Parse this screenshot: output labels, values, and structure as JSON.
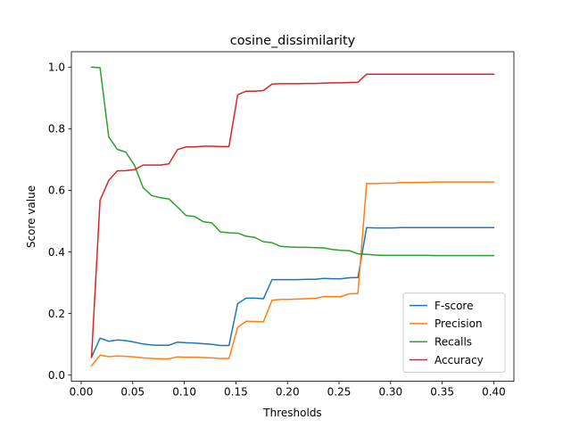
{
  "chart_data": {
    "type": "line",
    "title": "cosine_dissimilarity",
    "xlabel": "Thresholds",
    "ylabel": "Score value",
    "xlim": [
      -0.0095,
      0.4195
    ],
    "ylim": [
      -0.02,
      1.05
    ],
    "xticks": [
      0.0,
      0.05,
      0.1,
      0.15,
      0.2,
      0.25,
      0.3,
      0.35,
      0.4
    ],
    "xtick_labels": [
      "0.00",
      "0.05",
      "0.10",
      "0.15",
      "0.20",
      "0.25",
      "0.30",
      "0.35",
      "0.40"
    ],
    "yticks": [
      0.0,
      0.2,
      0.4,
      0.6,
      0.8,
      1.0
    ],
    "ytick_labels": [
      "0.0",
      "0.2",
      "0.4",
      "0.6",
      "0.8",
      "1.0"
    ],
    "grid": false,
    "legend_position": "lower right",
    "x": [
      0.01,
      0.0183,
      0.0267,
      0.035,
      0.0433,
      0.0517,
      0.06,
      0.0683,
      0.0767,
      0.085,
      0.0933,
      0.1017,
      0.11,
      0.1183,
      0.1267,
      0.135,
      0.1433,
      0.1517,
      0.16,
      0.1683,
      0.1767,
      0.185,
      0.1933,
      0.2017,
      0.21,
      0.2183,
      0.2267,
      0.235,
      0.2433,
      0.2517,
      0.26,
      0.2683,
      0.2767,
      0.285,
      0.2933,
      0.3017,
      0.31,
      0.3183,
      0.3267,
      0.335,
      0.3433,
      0.3517,
      0.36,
      0.3683,
      0.3767,
      0.385,
      0.3933,
      0.4
    ],
    "series": [
      {
        "name": "F-score",
        "color": "#1f77b4",
        "values": [
          0.058,
          0.12,
          0.11,
          0.114,
          0.112,
          0.107,
          0.101,
          0.098,
          0.097,
          0.097,
          0.107,
          0.105,
          0.104,
          0.102,
          0.1,
          0.096,
          0.096,
          0.232,
          0.25,
          0.25,
          0.248,
          0.31,
          0.31,
          0.31,
          0.31,
          0.311,
          0.311,
          0.314,
          0.313,
          0.313,
          0.316,
          0.317,
          0.479,
          0.478,
          0.478,
          0.478,
          0.479,
          0.479,
          0.479,
          0.479,
          0.479,
          0.479,
          0.479,
          0.479,
          0.479,
          0.479,
          0.479,
          0.479
        ]
      },
      {
        "name": "Precision",
        "color": "#ff7f0e",
        "values": [
          0.03,
          0.065,
          0.06,
          0.062,
          0.061,
          0.059,
          0.056,
          0.054,
          0.053,
          0.053,
          0.059,
          0.058,
          0.058,
          0.057,
          0.056,
          0.054,
          0.054,
          0.155,
          0.175,
          0.174,
          0.173,
          0.243,
          0.246,
          0.246,
          0.247,
          0.248,
          0.249,
          0.255,
          0.255,
          0.255,
          0.264,
          0.265,
          0.622,
          0.622,
          0.623,
          0.623,
          0.625,
          0.625,
          0.626,
          0.626,
          0.627,
          0.627,
          0.627,
          0.627,
          0.627,
          0.627,
          0.627,
          0.627
        ]
      },
      {
        "name": "Recalls",
        "color": "#2ca02c",
        "values": [
          1.0,
          0.998,
          0.774,
          0.733,
          0.724,
          0.681,
          0.609,
          0.583,
          0.576,
          0.572,
          0.546,
          0.518,
          0.515,
          0.498,
          0.494,
          0.465,
          0.462,
          0.461,
          0.451,
          0.447,
          0.433,
          0.43,
          0.418,
          0.416,
          0.415,
          0.415,
          0.414,
          0.413,
          0.408,
          0.405,
          0.404,
          0.394,
          0.392,
          0.39,
          0.389,
          0.389,
          0.389,
          0.389,
          0.389,
          0.389,
          0.388,
          0.388,
          0.388,
          0.388,
          0.388,
          0.388,
          0.388,
          0.388
        ]
      },
      {
        "name": "Accuracy",
        "color": "#d62728",
        "values": [
          0.058,
          0.568,
          0.632,
          0.663,
          0.664,
          0.667,
          0.682,
          0.682,
          0.682,
          0.686,
          0.732,
          0.741,
          0.741,
          0.743,
          0.743,
          0.742,
          0.742,
          0.91,
          0.922,
          0.922,
          0.924,
          0.945,
          0.946,
          0.946,
          0.946,
          0.947,
          0.947,
          0.948,
          0.949,
          0.949,
          0.95,
          0.951,
          0.977,
          0.977,
          0.977,
          0.977,
          0.977,
          0.977,
          0.977,
          0.977,
          0.977,
          0.977,
          0.977,
          0.977,
          0.977,
          0.977,
          0.977,
          0.977
        ]
      }
    ]
  }
}
